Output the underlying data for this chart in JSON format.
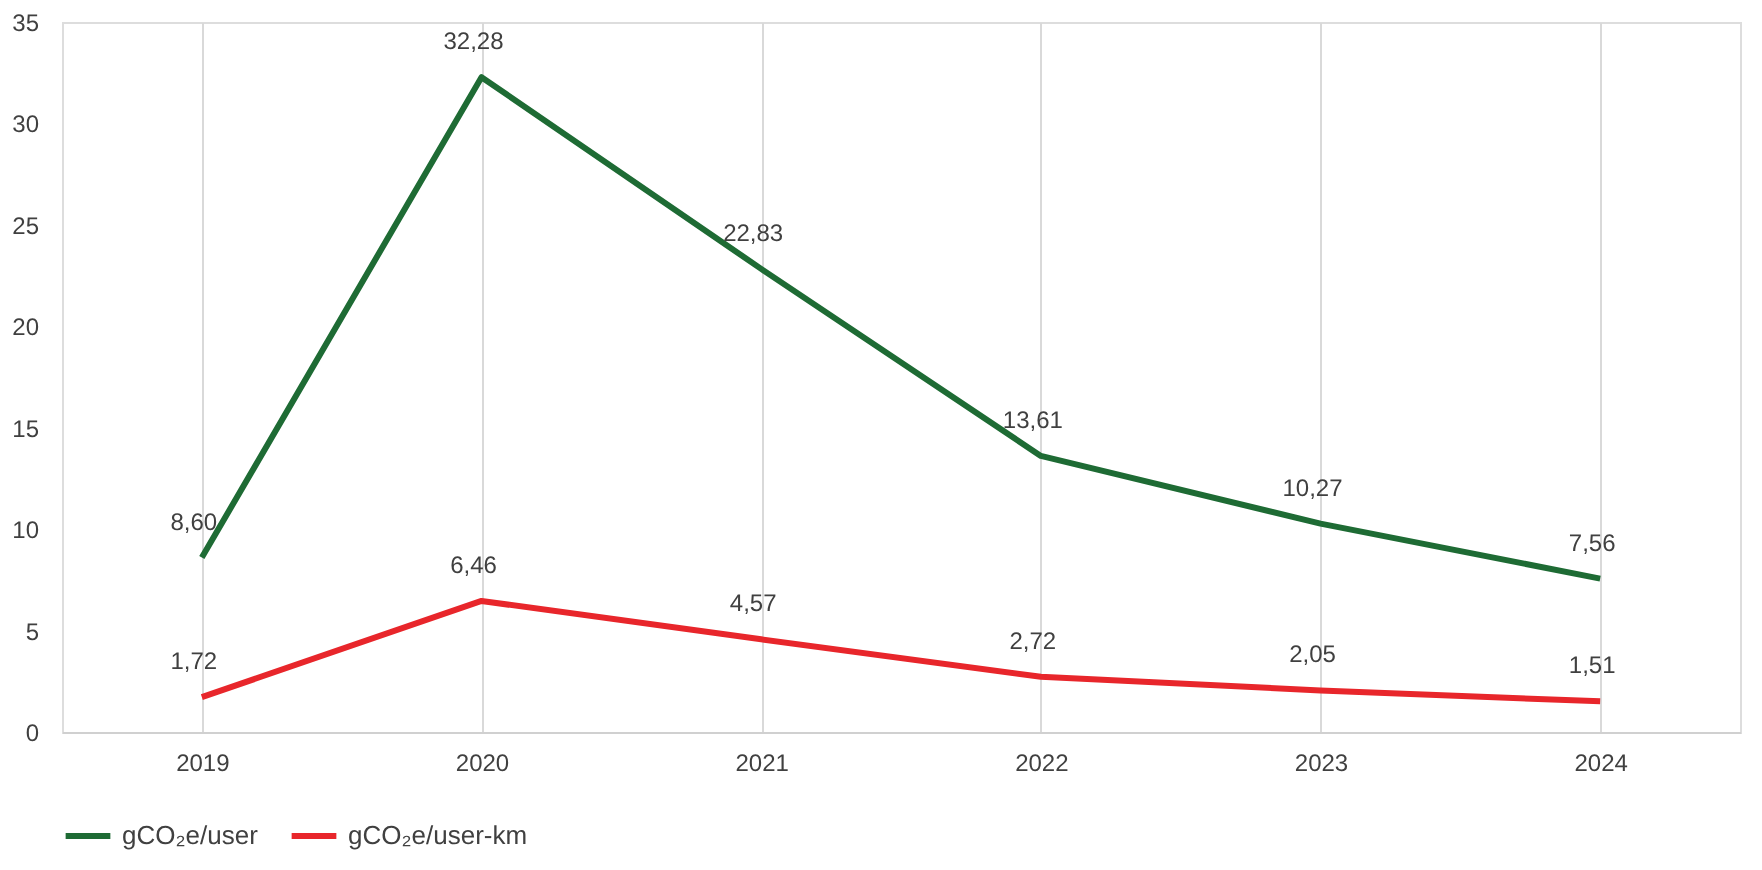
{
  "chart_data": {
    "type": "line",
    "categories": [
      "2019",
      "2020",
      "2021",
      "2022",
      "2023",
      "2024"
    ],
    "ylim": [
      0,
      35
    ],
    "yticks": [
      0,
      5,
      10,
      15,
      20,
      25,
      30,
      35
    ],
    "grid": "x",
    "legend": "bottom",
    "marker": "none",
    "line_style": "solid",
    "series": [
      {
        "name": "gCO₂e/user",
        "color": "#1e6b34",
        "values": [
          8.6,
          32.28,
          22.83,
          13.61,
          10.27,
          7.56
        ],
        "value_labels": [
          "8,60",
          "32,28",
          "22,83",
          "13,61",
          "10,27",
          "7,56"
        ]
      },
      {
        "name": "gCO₂e/user-km",
        "color": "#e8262b",
        "values": [
          1.72,
          6.46,
          4.57,
          2.72,
          2.05,
          1.51
        ],
        "value_labels": [
          "1,72",
          "6,46",
          "4,57",
          "2,72",
          "2,05",
          "1,51"
        ]
      }
    ]
  }
}
